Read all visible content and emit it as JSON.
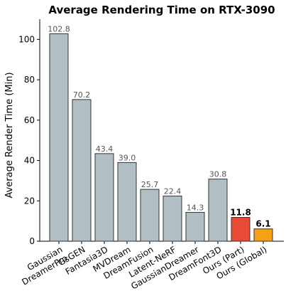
{
  "chart_data": {
    "type": "bar",
    "title": "Average Rendering Time on RTX-3090",
    "ylabel": "Average Render Time (Min)",
    "xlabel": "",
    "ylim": [
      0,
      110
    ],
    "yticks": [
      0,
      20,
      40,
      60,
      80,
      100
    ],
    "categories": [
      "Gaussian DreamerPro",
      "GsGEN",
      "Fantasia3D",
      "MVDream",
      "DreamFusion",
      "Latent-NeRF",
      "GaussianDreamer",
      "DreamFont3D",
      "Ours (Part)",
      "Ours (Global)"
    ],
    "values": [
      102.8,
      70.2,
      43.4,
      39.0,
      25.7,
      22.4,
      14.3,
      30.8,
      11.8,
      6.1
    ],
    "value_labels": [
      "102.8",
      "70.2",
      "43.4",
      "39.0",
      "25.7",
      "22.4",
      "14.3",
      "30.8",
      "11.8",
      "6.1"
    ],
    "bar_colors": [
      "#b1bec4",
      "#b1bec4",
      "#b1bec4",
      "#b1bec4",
      "#b1bec4",
      "#b1bec4",
      "#b1bec4",
      "#b1bec4",
      "#e84a36",
      "#f5a115"
    ],
    "highlight": [
      false,
      false,
      false,
      false,
      false,
      false,
      false,
      false,
      true,
      true
    ],
    "grid": false
  }
}
